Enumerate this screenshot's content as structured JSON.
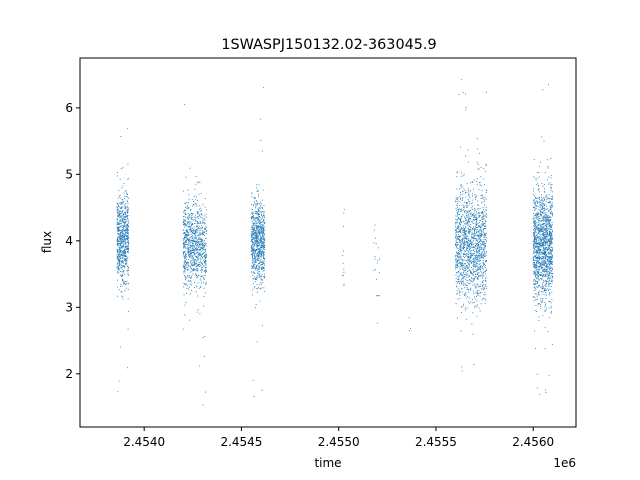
{
  "chart_data": {
    "type": "scatter",
    "title": "1SWASPJ150132.02-363045.9",
    "xlabel": "time",
    "ylabel": "flux",
    "x_offset_label": "1e6",
    "xlim": [
      2.45367,
      2.45622
    ],
    "ylim": [
      1.2,
      6.75
    ],
    "x_ticks": [
      2.454,
      2.4545,
      2.455,
      2.4555,
      2.456
    ],
    "x_tick_labels": [
      "2.4540",
      "2.4545",
      "2.4550",
      "2.4555",
      "2.4560"
    ],
    "y_ticks": [
      2,
      3,
      4,
      5,
      6
    ],
    "y_tick_labels": [
      "2",
      "3",
      "4",
      "5",
      "6"
    ],
    "grid": false,
    "marker_color": "#1f77b4",
    "clusters": [
      {
        "x_start": 2.45386,
        "x_end": 2.45392,
        "center": 4.0,
        "sd": 0.35,
        "n": 700,
        "y_min": 1.65,
        "y_max": 6.5
      },
      {
        "x_start": 2.4542,
        "x_end": 2.45432,
        "center": 3.95,
        "sd": 0.32,
        "n": 900,
        "y_min": 1.45,
        "y_max": 6.15
      },
      {
        "x_start": 2.45455,
        "x_end": 2.45462,
        "center": 4.0,
        "sd": 0.32,
        "n": 800,
        "y_min": 1.6,
        "y_max": 6.5
      },
      {
        "x_start": 2.45502,
        "x_end": 2.45503,
        "center": 3.7,
        "sd": 0.5,
        "n": 12,
        "y_min": 2.7,
        "y_max": 4.5
      },
      {
        "x_start": 2.45518,
        "x_end": 2.45521,
        "center": 3.6,
        "sd": 0.5,
        "n": 20,
        "y_min": 2.4,
        "y_max": 4.3
      },
      {
        "x_start": 2.45536,
        "x_end": 2.45537,
        "center": 2.7,
        "sd": 0.1,
        "n": 3,
        "y_min": 2.55,
        "y_max": 2.85
      },
      {
        "x_start": 2.4556,
        "x_end": 2.45576,
        "center": 3.95,
        "sd": 0.42,
        "n": 1400,
        "y_min": 1.85,
        "y_max": 6.45
      },
      {
        "x_start": 2.456,
        "x_end": 2.4561,
        "center": 3.95,
        "sd": 0.42,
        "n": 1400,
        "y_min": 1.45,
        "y_max": 6.45
      }
    ]
  }
}
